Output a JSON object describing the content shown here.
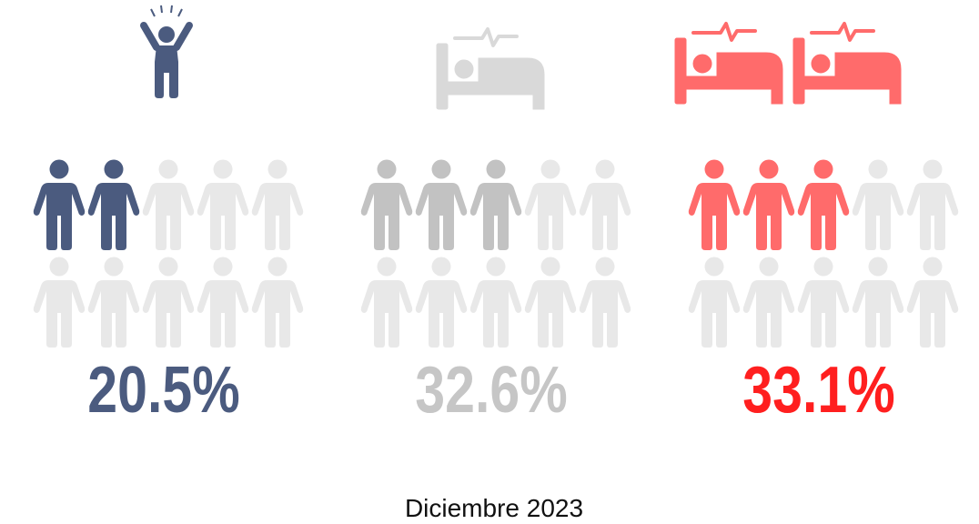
{
  "chart_data": {
    "type": "pictogram",
    "icons_per_group": 10,
    "series": [
      {
        "color": "#4b5b7f",
        "label_color": "#4b5b7f",
        "filled": 2,
        "values": [
          20.5
        ],
        "value_labels": [
          "20.5%"
        ]
      },
      {
        "color": "#c2c2c2",
        "label_color": "#c6c6c6",
        "filled": 3,
        "values": [
          32.6
        ],
        "value_labels": [
          "32.6%"
        ]
      },
      {
        "color": "#ff6b6b",
        "label_color": "#ff1f1f",
        "filled": 3,
        "values": [
          33.1
        ],
        "value_labels": [
          "33.1%"
        ]
      }
    ],
    "empty_color": "#e8e8e8",
    "caption": "Diciembre 2023"
  }
}
